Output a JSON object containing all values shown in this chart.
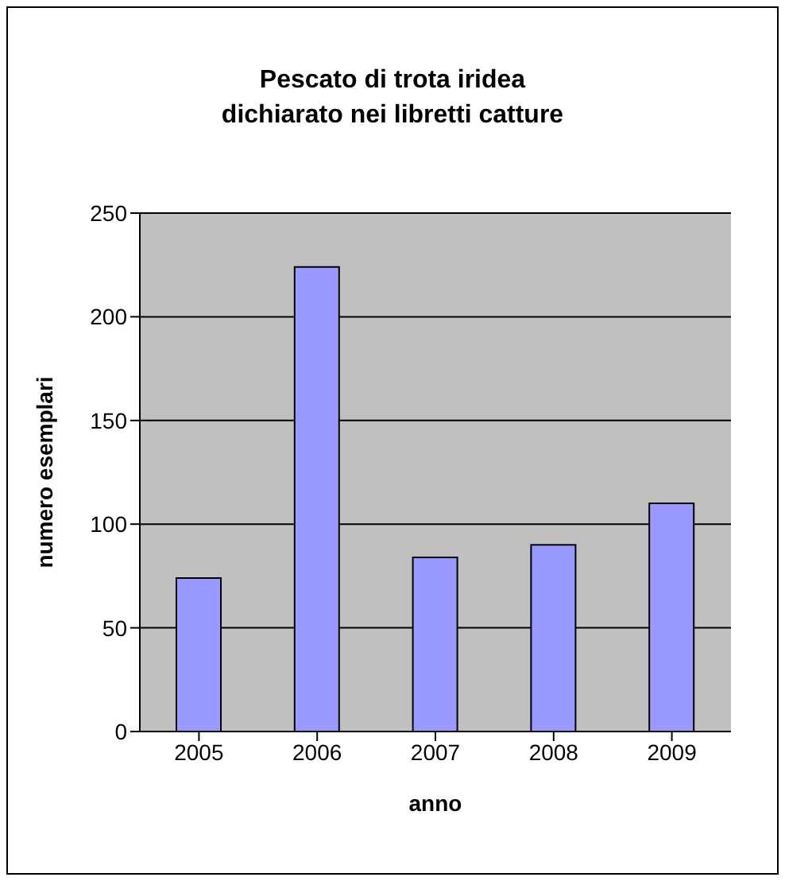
{
  "chart_data": {
    "type": "bar",
    "title": "Pescato di trota iridea\ndichiarato nei libretti catture",
    "xlabel": "anno",
    "ylabel": "numero esemplari",
    "categories": [
      "2005",
      "2006",
      "2007",
      "2008",
      "2009"
    ],
    "values": [
      74,
      224,
      84,
      90,
      110
    ],
    "color": "#9999ff",
    "ylim": [
      0,
      250
    ],
    "yticks": [
      0,
      50,
      100,
      150,
      200,
      250
    ],
    "grid": "y"
  }
}
